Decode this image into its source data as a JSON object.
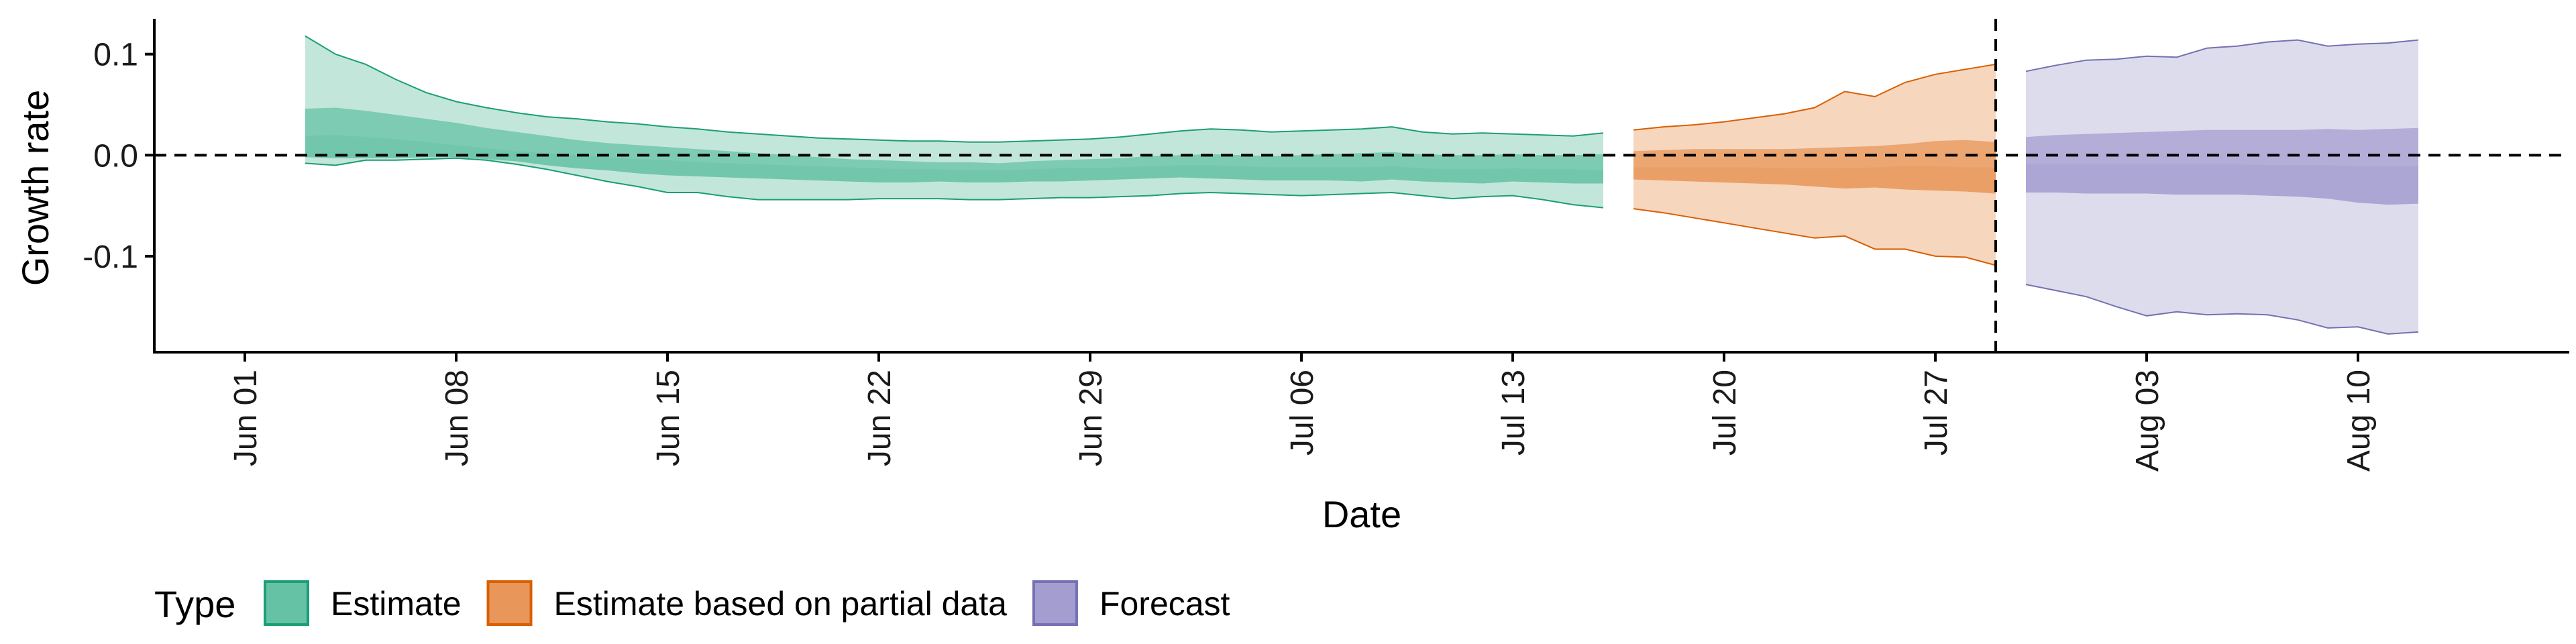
{
  "chart_data": {
    "type": "area",
    "xlabel": "Date",
    "ylabel": "Growth rate",
    "x_range": [
      "2021-05-29",
      "2021-08-17"
    ],
    "ylim": [
      -0.195,
      0.135
    ],
    "y_ticks": [
      0.1,
      0.0,
      -0.1
    ],
    "y_tick_labels": [
      "0.1",
      "0.0",
      "-0.1"
    ],
    "x_ticks": [
      "2021-06-01",
      "2021-06-08",
      "2021-06-15",
      "2021-06-22",
      "2021-06-29",
      "2021-07-06",
      "2021-07-13",
      "2021-07-20",
      "2021-07-27",
      "2021-08-03",
      "2021-08-10"
    ],
    "x_tick_labels": [
      "Jun 01",
      "Jun 08",
      "Jun 15",
      "Jun 22",
      "Jun 29",
      "Jul 06",
      "Jul 13",
      "Jul 20",
      "Jul 27",
      "Aug 03",
      "Aug 10"
    ],
    "x_tick_label_rotation": "vertical",
    "reference_lines": [
      {
        "axis": "y",
        "value": 0,
        "style": "dashed"
      },
      {
        "axis": "x",
        "value": "2021-07-29",
        "style": "dashed"
      }
    ],
    "legend": {
      "title": "Type",
      "position": "bottom-left"
    },
    "series": [
      {
        "name": "Estimate",
        "fill": "#66c2a5",
        "outer_fill": "#c3e6db",
        "stroke": "#1b9e77",
        "dates": [
          "2021-06-03",
          "2021-06-04",
          "2021-06-05",
          "2021-06-06",
          "2021-06-07",
          "2021-06-08",
          "2021-06-09",
          "2021-06-10",
          "2021-06-11",
          "2021-06-12",
          "2021-06-13",
          "2021-06-14",
          "2021-06-15",
          "2021-06-16",
          "2021-06-17",
          "2021-06-18",
          "2021-06-19",
          "2021-06-20",
          "2021-06-21",
          "2021-06-22",
          "2021-06-23",
          "2021-06-24",
          "2021-06-25",
          "2021-06-26",
          "2021-06-27",
          "2021-06-28",
          "2021-06-29",
          "2021-06-30",
          "2021-07-01",
          "2021-07-02",
          "2021-07-03",
          "2021-07-04",
          "2021-07-05",
          "2021-07-06",
          "2021-07-07",
          "2021-07-08",
          "2021-07-09",
          "2021-07-10",
          "2021-07-11",
          "2021-07-12",
          "2021-07-13",
          "2021-07-14",
          "2021-07-15",
          "2021-07-16"
        ],
        "upper_90": [
          0.118,
          0.1,
          0.09,
          0.075,
          0.062,
          0.053,
          0.047,
          0.042,
          0.038,
          0.036,
          0.033,
          0.031,
          0.028,
          0.026,
          0.023,
          0.021,
          0.019,
          0.017,
          0.016,
          0.015,
          0.014,
          0.014,
          0.013,
          0.013,
          0.014,
          0.015,
          0.016,
          0.018,
          0.021,
          0.024,
          0.026,
          0.025,
          0.023,
          0.024,
          0.025,
          0.026,
          0.028,
          0.023,
          0.021,
          0.022,
          0.021,
          0.02,
          0.019,
          0.022
        ],
        "upper_50": [
          0.046,
          0.047,
          0.044,
          0.04,
          0.036,
          0.032,
          0.027,
          0.023,
          0.019,
          0.015,
          0.012,
          0.01,
          0.008,
          0.006,
          0.004,
          0.002,
          0.0,
          -0.002,
          -0.004,
          -0.005,
          -0.006,
          -0.007,
          -0.007,
          -0.008,
          -0.006,
          -0.005,
          -0.004,
          -0.003,
          -0.001,
          0.0,
          0.001,
          0.0,
          -0.001,
          0.0,
          0.001,
          0.002,
          0.003,
          0.001,
          0.0,
          0.0,
          0.001,
          0.0,
          0.0,
          0.001
        ],
        "median": [
          0.019,
          0.02,
          0.018,
          0.016,
          0.013,
          0.01,
          0.007,
          0.004,
          0.002,
          0.0,
          -0.002,
          -0.004,
          -0.005,
          -0.007,
          -0.008,
          -0.009,
          -0.01,
          -0.011,
          -0.012,
          -0.013,
          -0.014,
          -0.014,
          -0.015,
          -0.015,
          -0.014,
          -0.013,
          -0.013,
          -0.012,
          -0.011,
          -0.01,
          -0.01,
          -0.011,
          -0.012,
          -0.012,
          -0.012,
          -0.012,
          -0.011,
          -0.013,
          -0.014,
          -0.014,
          -0.013,
          -0.014,
          -0.014,
          -0.015
        ],
        "lower_50": [
          -0.002,
          -0.003,
          -0.003,
          -0.003,
          -0.002,
          -0.002,
          -0.004,
          -0.006,
          -0.01,
          -0.013,
          -0.015,
          -0.018,
          -0.02,
          -0.021,
          -0.022,
          -0.023,
          -0.024,
          -0.025,
          -0.026,
          -0.027,
          -0.027,
          -0.026,
          -0.027,
          -0.027,
          -0.026,
          -0.026,
          -0.025,
          -0.024,
          -0.023,
          -0.022,
          -0.023,
          -0.024,
          -0.025,
          -0.025,
          -0.025,
          -0.026,
          -0.024,
          -0.026,
          -0.027,
          -0.028,
          -0.026,
          -0.027,
          -0.028,
          -0.028
        ],
        "lower_90": [
          -0.008,
          -0.01,
          -0.005,
          -0.005,
          -0.004,
          -0.003,
          -0.005,
          -0.009,
          -0.014,
          -0.02,
          -0.026,
          -0.031,
          -0.037,
          -0.037,
          -0.041,
          -0.044,
          -0.044,
          -0.044,
          -0.044,
          -0.043,
          -0.043,
          -0.043,
          -0.044,
          -0.044,
          -0.043,
          -0.042,
          -0.042,
          -0.041,
          -0.04,
          -0.038,
          -0.037,
          -0.038,
          -0.039,
          -0.04,
          -0.039,
          -0.038,
          -0.037,
          -0.04,
          -0.043,
          -0.041,
          -0.04,
          -0.044,
          -0.049,
          -0.052
        ]
      },
      {
        "name": "Estimate based on partial data",
        "fill": "#e8965a",
        "outer_fill": "#f6d6bd",
        "stroke": "#d95f02",
        "dates": [
          "2021-07-17",
          "2021-07-18",
          "2021-07-19",
          "2021-07-20",
          "2021-07-21",
          "2021-07-22",
          "2021-07-23",
          "2021-07-24",
          "2021-07-25",
          "2021-07-26",
          "2021-07-27",
          "2021-07-28",
          "2021-07-29"
        ],
        "upper_90": [
          0.025,
          0.028,
          0.03,
          0.033,
          0.037,
          0.041,
          0.047,
          0.063,
          0.058,
          0.072,
          0.08,
          0.085,
          0.09
        ],
        "upper_50": [
          0.004,
          0.005,
          0.006,
          0.006,
          0.006,
          0.006,
          0.007,
          0.008,
          0.009,
          0.011,
          0.014,
          0.015,
          0.013
        ],
        "median": [
          -0.012,
          -0.012,
          -0.012,
          -0.012,
          -0.012,
          -0.013,
          -0.013,
          -0.013,
          -0.012,
          -0.011,
          -0.011,
          -0.012,
          -0.012
        ],
        "lower_50": [
          -0.024,
          -0.025,
          -0.026,
          -0.027,
          -0.028,
          -0.029,
          -0.031,
          -0.033,
          -0.032,
          -0.034,
          -0.035,
          -0.036,
          -0.038
        ],
        "lower_90": [
          -0.053,
          -0.057,
          -0.062,
          -0.067,
          -0.072,
          -0.077,
          -0.082,
          -0.08,
          -0.093,
          -0.093,
          -0.1,
          -0.101,
          -0.109
        ]
      },
      {
        "name": "Forecast",
        "fill": "#a49ed0",
        "outer_fill": "#dddcec",
        "stroke": "#7570b3",
        "dates": [
          "2021-07-30",
          "2021-07-31",
          "2021-08-01",
          "2021-08-02",
          "2021-08-03",
          "2021-08-04",
          "2021-08-05",
          "2021-08-06",
          "2021-08-07",
          "2021-08-08",
          "2021-08-09",
          "2021-08-10",
          "2021-08-11",
          "2021-08-12"
        ],
        "upper_90": [
          0.083,
          0.089,
          0.094,
          0.095,
          0.098,
          0.097,
          0.106,
          0.108,
          0.112,
          0.114,
          0.108,
          0.11,
          0.111,
          0.114
        ],
        "upper_50": [
          0.018,
          0.02,
          0.021,
          0.022,
          0.023,
          0.024,
          0.025,
          0.025,
          0.025,
          0.025,
          0.026,
          0.025,
          0.026,
          0.027
        ],
        "median": [
          -0.009,
          -0.009,
          -0.009,
          -0.009,
          -0.009,
          -0.009,
          -0.009,
          -0.009,
          -0.01,
          -0.01,
          -0.01,
          -0.011,
          -0.011,
          -0.011
        ],
        "lower_50": [
          -0.037,
          -0.037,
          -0.038,
          -0.038,
          -0.038,
          -0.039,
          -0.039,
          -0.039,
          -0.04,
          -0.041,
          -0.043,
          -0.047,
          -0.049,
          -0.048
        ],
        "lower_90": [
          -0.128,
          -0.134,
          -0.14,
          -0.15,
          -0.159,
          -0.155,
          -0.158,
          -0.157,
          -0.158,
          -0.163,
          -0.171,
          -0.17,
          -0.177,
          -0.175
        ]
      }
    ]
  }
}
